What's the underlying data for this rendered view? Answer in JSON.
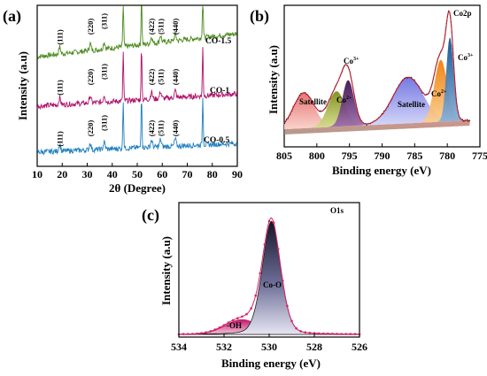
{
  "chart_data": [
    {
      "type": "line",
      "panel": "(a)",
      "xlabel": "2θ (Degree)",
      "ylabel": "Intensity (a.u)",
      "xlim": [
        10,
        90
      ],
      "xticks": [
        "10",
        "20",
        "30",
        "40",
        "50",
        "60",
        "70",
        "80",
        "90"
      ],
      "grid": false,
      "series": [
        {
          "name": "CO-1.5",
          "color": "#4a8a1c"
        },
        {
          "name": "CO-1",
          "color": "#b0106a"
        },
        {
          "name": "CO-0.5",
          "color": "#1e7fc0"
        }
      ],
      "peaks": [
        {
          "label": "(111)",
          "x": 19.0
        },
        {
          "label": "(220)",
          "x": 31.2
        },
        {
          "label": "(311)",
          "x": 36.8
        },
        {
          "label": "(422)",
          "x": 55.7
        },
        {
          "label": "(511)",
          "x": 59.3
        },
        {
          "label": "(440)",
          "x": 65.2
        }
      ],
      "strong_peaks_x": [
        44.4,
        51.7,
        76.2
      ]
    },
    {
      "type": "line",
      "panel": "(b)",
      "title": "Co2p",
      "xlabel": "Binding energy (eV)",
      "ylabel": "Intensity (a.u)",
      "xlim": [
        805,
        775
      ],
      "xticks": [
        "805",
        "800",
        "795",
        "790",
        "785",
        "780",
        "775"
      ],
      "components": [
        {
          "name": "Satellite",
          "center": 802.0,
          "color": "#e57373"
        },
        {
          "name": "Co",
          "sup": "2+",
          "center": 797.0,
          "color": "#8a9a1a"
        },
        {
          "name": "Co",
          "sup": "3+",
          "center": 795.2,
          "color": "#4a1a5a"
        },
        {
          "name": "Satellite",
          "center": 786.0,
          "color": "#7b7ee0"
        },
        {
          "name": "Co",
          "sup": "2+",
          "center": 781.0,
          "color": "#f08a10"
        },
        {
          "name": "Co",
          "sup": "3+",
          "center": 779.6,
          "color": "#1a5a9a"
        }
      ]
    },
    {
      "type": "line",
      "panel": "(c)",
      "title": "O1s",
      "xlabel": "Binding energy (eV)",
      "ylabel": "Intensity (a.u)",
      "xlim": [
        534,
        526
      ],
      "xticks": [
        "534",
        "532",
        "530",
        "528",
        "526"
      ],
      "components": [
        {
          "name": "-OH",
          "center": 531.3,
          "color": "#c2186b"
        },
        {
          "name": "Co-O",
          "center": 529.9,
          "color": "#2a2a4a"
        }
      ]
    }
  ]
}
